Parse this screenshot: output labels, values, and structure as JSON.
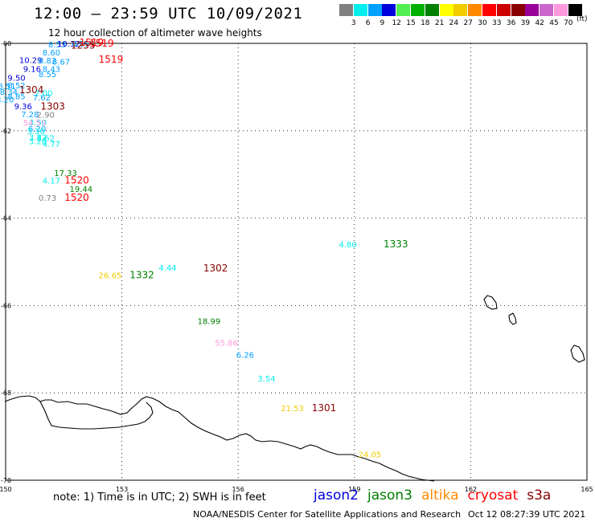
{
  "header": {
    "title": "12:00 – 23:59 UTC 10/09/2021",
    "subtitle": "12 hour collection of altimeter wave heights"
  },
  "colorbar": {
    "unit": "(ft)",
    "swatches": [
      {
        "color": "#808080",
        "label": "3"
      },
      {
        "color": "#00eeee",
        "label": "6"
      },
      {
        "color": "#00a0ff",
        "label": "9"
      },
      {
        "color": "#0000dd",
        "label": "12"
      },
      {
        "color": "#50ee50",
        "label": "15"
      },
      {
        "color": "#00b000",
        "label": "18"
      },
      {
        "color": "#008000",
        "label": "21"
      },
      {
        "color": "#ffff00",
        "label": "24"
      },
      {
        "color": "#f0cc00",
        "label": "27"
      },
      {
        "color": "#ff8800",
        "label": "30"
      },
      {
        "color": "#ff0000",
        "label": "33"
      },
      {
        "color": "#cc0000",
        "label": "36"
      },
      {
        "color": "#880000",
        "label": "39"
      },
      {
        "color": "#990099",
        "label": "42"
      },
      {
        "color": "#cc66cc",
        "label": "45"
      },
      {
        "color": "#ff99dd",
        "label": "70"
      },
      {
        "color": "#000000",
        "label": ""
      }
    ]
  },
  "map": {
    "lon_range": [
      150,
      165
    ],
    "lat_range": [
      -60,
      -70
    ],
    "lon_ticks": [
      "150",
      "153",
      "156",
      "159",
      "162",
      "165"
    ],
    "lat_ticks": [
      "-60",
      "-62",
      "-64",
      "-66",
      "-68",
      "-70"
    ],
    "observations": [
      {
        "lon": 151.1,
        "lat": -60.02,
        "text": "8.53",
        "color": "#00a0ff"
      },
      {
        "lon": 151.33,
        "lat": -60.0,
        "text": "10.32",
        "color": "#0000dd"
      },
      {
        "lon": 151.7,
        "lat": -60.0,
        "text": "8.55",
        "color": "#00a0ff"
      },
      {
        "lon": 151.9,
        "lat": -59.98,
        "text": "1519",
        "color": "#ff0000",
        "time": true
      },
      {
        "lon": 152.16,
        "lat": -60.0,
        "text": "1519",
        "color": "#ff0000",
        "time": true
      },
      {
        "lon": 151.68,
        "lat": -60.05,
        "text": "1255",
        "color": "#880000",
        "time": true
      },
      {
        "lon": 150.95,
        "lat": -60.2,
        "text": "8.60",
        "color": "#00a0ff"
      },
      {
        "lon": 150.35,
        "lat": -60.38,
        "text": "10.29",
        "color": "#0000dd"
      },
      {
        "lon": 150.85,
        "lat": -60.39,
        "text": "8.82",
        "color": "#00a0ff"
      },
      {
        "lon": 151.2,
        "lat": -60.41,
        "text": "8.67",
        "color": "#00a0ff"
      },
      {
        "lon": 152.4,
        "lat": -60.37,
        "text": "1519",
        "color": "#ff0000",
        "time": true
      },
      {
        "lon": 150.45,
        "lat": -60.58,
        "text": "9.16",
        "color": "#0000dd"
      },
      {
        "lon": 150.95,
        "lat": -60.58,
        "text": "8.43",
        "color": "#00a0ff"
      },
      {
        "lon": 150.85,
        "lat": -60.7,
        "text": "8.55",
        "color": "#00a0ff"
      },
      {
        "lon": 150.05,
        "lat": -60.78,
        "text": "9.50",
        "color": "#0000dd"
      },
      {
        "lon": 149.8,
        "lat": -60.97,
        "text": "8.51",
        "color": "#00a0ff"
      },
      {
        "lon": 150.05,
        "lat": -60.96,
        "text": "8.52",
        "color": "#00a0ff"
      },
      {
        "lon": 150.35,
        "lat": -61.07,
        "text": "1304",
        "color": "#880000",
        "time": true
      },
      {
        "lon": 149.85,
        "lat": -61.1,
        "text": "8.34",
        "color": "#00a0ff"
      },
      {
        "lon": 150.75,
        "lat": -61.13,
        "text": "2.00",
        "color": "#00eeee"
      },
      {
        "lon": 150.05,
        "lat": -61.2,
        "text": "8.85",
        "color": "#00a0ff"
      },
      {
        "lon": 150.7,
        "lat": -61.23,
        "text": "7.62",
        "color": "#00a0ff"
      },
      {
        "lon": 149.75,
        "lat": -61.28,
        "text": "8.20",
        "color": "#00a0ff"
      },
      {
        "lon": 150.22,
        "lat": -61.43,
        "text": "9.36",
        "color": "#0000dd"
      },
      {
        "lon": 150.9,
        "lat": -61.44,
        "text": "1303",
        "color": "#880000",
        "time": true
      },
      {
        "lon": 150.4,
        "lat": -61.62,
        "text": "7.28",
        "color": "#00a0ff"
      },
      {
        "lon": 150.8,
        "lat": -61.63,
        "text": "2.90",
        "color": "#808080"
      },
      {
        "lon": 150.6,
        "lat": -61.8,
        "text": "3.50",
        "color": "#00eeee"
      },
      {
        "lon": 150.45,
        "lat": -61.81,
        "text": "54.59",
        "color": "#ff99dd"
      },
      {
        "lon": 150.58,
        "lat": -61.95,
        "text": "6.20",
        "color": "#00a0ff"
      },
      {
        "lon": 150.55,
        "lat": -62.0,
        "text": "3.30",
        "color": "#00eeee"
      },
      {
        "lon": 150.6,
        "lat": -62.14,
        "text": "3.82",
        "color": "#00eeee"
      },
      {
        "lon": 150.8,
        "lat": -62.16,
        "text": "3.62",
        "color": "#00eeee"
      },
      {
        "lon": 150.6,
        "lat": -62.23,
        "text": "3.26",
        "color": "#00eeee"
      },
      {
        "lon": 150.95,
        "lat": -62.3,
        "text": "4.77",
        "color": "#00eeee"
      },
      {
        "lon": 151.25,
        "lat": -62.96,
        "text": "17.33",
        "color": "#008000"
      },
      {
        "lon": 150.95,
        "lat": -63.13,
        "text": "4.17",
        "color": "#00eeee"
      },
      {
        "lon": 151.52,
        "lat": -63.13,
        "text": "1520",
        "color": "#ff0000",
        "time": true
      },
      {
        "lon": 151.65,
        "lat": -63.33,
        "text": "19.44",
        "color": "#008000"
      },
      {
        "lon": 150.85,
        "lat": -63.53,
        "text": "0.73",
        "color": "#808080"
      },
      {
        "lon": 151.52,
        "lat": -63.53,
        "text": "1520",
        "color": "#ff0000",
        "time": true
      },
      {
        "lon": 158.6,
        "lat": -64.6,
        "text": "4.80",
        "color": "#00eeee"
      },
      {
        "lon": 159.75,
        "lat": -64.6,
        "text": "1333",
        "color": "#008000",
        "time": true
      },
      {
        "lon": 155.1,
        "lat": -65.15,
        "text": "1302",
        "color": "#880000",
        "time": true
      },
      {
        "lon": 153.95,
        "lat": -65.13,
        "text": "4.44",
        "color": "#00eeee"
      },
      {
        "lon": 152.4,
        "lat": -65.3,
        "text": "26.65",
        "color": "#f0cc00"
      },
      {
        "lon": 153.2,
        "lat": -65.3,
        "text": "1332",
        "color": "#008000",
        "time": true
      },
      {
        "lon": 154.95,
        "lat": -66.35,
        "text": "18.99",
        "color": "#008000"
      },
      {
        "lon": 155.4,
        "lat": -66.85,
        "text": "55.86",
        "color": "#ff99dd"
      },
      {
        "lon": 155.95,
        "lat": -67.12,
        "text": "6.26",
        "color": "#00a0ff"
      },
      {
        "lon": 156.5,
        "lat": -67.67,
        "text": "3.54",
        "color": "#00eeee"
      },
      {
        "lon": 157.1,
        "lat": -68.35,
        "text": "21.53",
        "color": "#f0cc00"
      },
      {
        "lon": 157.9,
        "lat": -68.35,
        "text": "1301",
        "color": "#880000",
        "time": true
      },
      {
        "lon": 159.1,
        "lat": -69.4,
        "text": "24.05",
        "color": "#f0cc00"
      }
    ]
  },
  "footer": {
    "note": "note: 1) Time is in UTC; 2) SWH is in feet",
    "legend": [
      {
        "text": "jason2",
        "color": "#0000dd"
      },
      {
        "text": "jason3",
        "color": "#008000"
      },
      {
        "text": "altika",
        "color": "#ff8800"
      },
      {
        "text": "cryosat",
        "color": "#ff0000"
      },
      {
        "text": "s3a",
        "color": "#880000"
      }
    ],
    "credit": "NOAA/NESDIS Center for Satellite Applications and Research",
    "timestamp": "Oct 12 08:27:39 UTC 2021"
  }
}
